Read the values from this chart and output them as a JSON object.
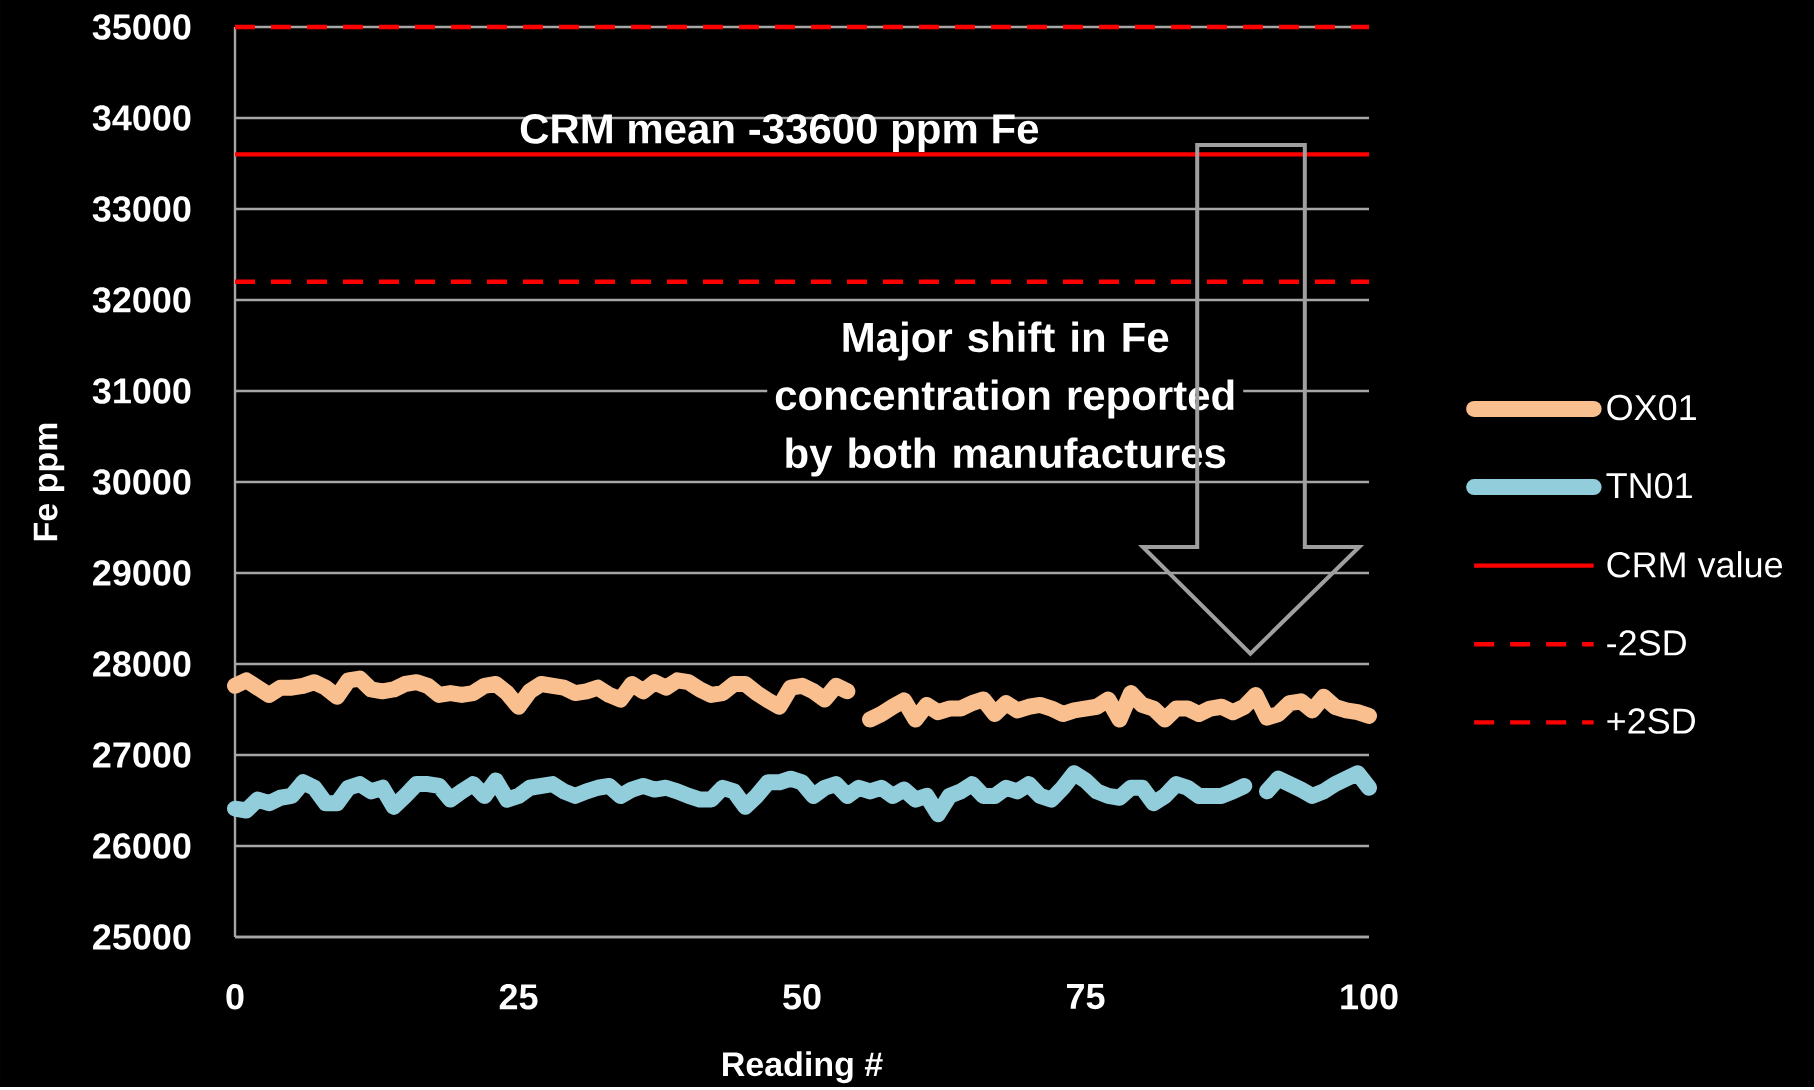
{
  "chart_data": {
    "type": "line",
    "xlabel": "Reading #",
    "ylabel": "Fe ppm",
    "xlim": [
      0,
      100
    ],
    "ylim": [
      25000,
      35000
    ],
    "xticks": [
      0,
      25,
      50,
      75,
      100
    ],
    "yticks": [
      25000,
      26000,
      27000,
      28000,
      29000,
      30000,
      31000,
      32000,
      33000,
      34000,
      35000
    ],
    "grid": "y",
    "legend": "right",
    "x": [
      0,
      1,
      2,
      3,
      4,
      5,
      6,
      7,
      8,
      9,
      10,
      11,
      12,
      13,
      14,
      15,
      16,
      17,
      18,
      19,
      20,
      21,
      22,
      23,
      24,
      25,
      26,
      27,
      28,
      29,
      30,
      31,
      32,
      33,
      34,
      35,
      36,
      37,
      38,
      39,
      40,
      41,
      42,
      43,
      44,
      45,
      46,
      47,
      48,
      49,
      50,
      51,
      52,
      53,
      54,
      55,
      56,
      57,
      58,
      59,
      60,
      61,
      62,
      63,
      64,
      65,
      66,
      67,
      68,
      69,
      70,
      71,
      72,
      73,
      74,
      75,
      76,
      77,
      78,
      79,
      80,
      81,
      82,
      83,
      84,
      85,
      86,
      87,
      88,
      89,
      90,
      91,
      92,
      93,
      94,
      95,
      96,
      97,
      98,
      99,
      100
    ],
    "series": [
      {
        "name": "OX01",
        "color": "#f9bf8f",
        "values": [
          27760,
          27820,
          27740,
          27660,
          27740,
          27740,
          27760,
          27800,
          27740,
          27640,
          27820,
          27840,
          27720,
          27700,
          27720,
          27780,
          27800,
          27760,
          27660,
          27680,
          27660,
          27680,
          27760,
          27780,
          27680,
          27530,
          27700,
          27780,
          27760,
          27740,
          27680,
          27700,
          27740,
          27660,
          27610,
          27780,
          27700,
          27800,
          27740,
          27820,
          27800,
          27720,
          27660,
          27680,
          27780,
          27780,
          27680,
          27600,
          27530,
          27740,
          27760,
          27700,
          27610,
          27760,
          27700,
          null,
          27390,
          27450,
          27530,
          27600,
          27390,
          27550,
          27470,
          27510,
          27510,
          27570,
          27610,
          27450,
          27570,
          27490,
          27530,
          27550,
          27510,
          27450,
          27490,
          27510,
          27530,
          27610,
          27390,
          27680,
          27550,
          27510,
          27390,
          27510,
          27510,
          27450,
          27510,
          27530,
          27470,
          27530,
          27660,
          27410,
          27450,
          27570,
          27590,
          27490,
          27640,
          27530,
          27490,
          27470,
          27430
        ]
      },
      {
        "name": "TN01",
        "color": "#92cddc",
        "values": [
          26410,
          26390,
          26510,
          26470,
          26530,
          26550,
          26700,
          26640,
          26470,
          26470,
          26640,
          26680,
          26600,
          26640,
          26430,
          26550,
          26680,
          26680,
          26660,
          26510,
          26600,
          26680,
          26550,
          26720,
          26510,
          26550,
          26640,
          26660,
          26680,
          26600,
          26550,
          26600,
          26640,
          26660,
          26550,
          26620,
          26660,
          26620,
          26640,
          26600,
          26550,
          26510,
          26510,
          26640,
          26600,
          26430,
          26550,
          26700,
          26700,
          26740,
          26700,
          26550,
          26640,
          26680,
          26550,
          26640,
          26600,
          26640,
          26550,
          26620,
          26510,
          26550,
          26350,
          26550,
          26600,
          26680,
          26550,
          26550,
          26640,
          26600,
          26680,
          26550,
          26510,
          26640,
          26800,
          26720,
          26600,
          26550,
          26530,
          26640,
          26640,
          26470,
          26550,
          26680,
          26640,
          26550,
          26550,
          26550,
          26600,
          26660,
          null,
          26600,
          26740,
          26680,
          26620,
          26550,
          26600,
          26680,
          26740,
          26800,
          26640
        ]
      }
    ],
    "ref_lines": [
      {
        "axis": "y",
        "value": 33600,
        "label": "CRM value",
        "color": "#ff0000",
        "line_style": "solid"
      },
      {
        "axis": "y",
        "value": 32200,
        "label": "-2SD",
        "color": "#ff0000",
        "line_style": "dashed"
      },
      {
        "axis": "y",
        "value": 35000,
        "label": "+2SD",
        "color": "#ff0000",
        "line_style": "dashed"
      }
    ],
    "annotations": [
      {
        "text": "CRM mean -33600 ppm Fe",
        "x": 48,
        "y": 33600
      },
      "Major shift in Fe concentration reported by both manufactures"
    ]
  }
}
